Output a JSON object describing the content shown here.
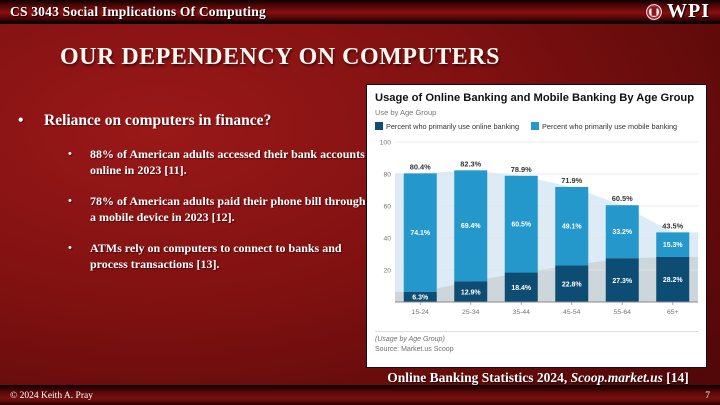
{
  "topbar": {
    "course": "CS 3043 Social Implications Of Computing",
    "logo_text": "WPI"
  },
  "slide": {
    "title": "OUR DEPENDENCY ON COMPUTERS",
    "bullet_main": "Reliance on computers in finance?",
    "sub_bullets": [
      "88% of American adults accessed their bank accounts online in 2023 [11].",
      "78% of American adults paid their phone bill through a mobile device in 2023 [12].",
      "ATMs rely on computers to connect to banks and process transactions [13]."
    ],
    "caption": {
      "prefix": "Online Banking Statistics 2024, ",
      "italic": "Scoop.market.us",
      "suffix": " [14]"
    }
  },
  "footer": {
    "copyright": "© 2024 Keith A. Pray",
    "page_number": "7"
  },
  "colors": {
    "wpi_crimson": "#a4283a",
    "slide_red": "#8a0f0f"
  },
  "chart_data": {
    "type": "bar",
    "stacked": true,
    "title": "Usage of Online Banking and Mobile Banking By Age Group",
    "subtitle": "Use by Age Group",
    "categories": [
      "15-24",
      "25-34",
      "35-44",
      "45-54",
      "55-64",
      "65+"
    ],
    "series": [
      {
        "name": "Percent who primarily use online banking",
        "color": "#0e4d73",
        "values": [
          6.3,
          12.9,
          18.4,
          22.8,
          27.3,
          28.2
        ]
      },
      {
        "name": "Percent who primarily use mobile banking",
        "color": "#2598cb",
        "values": [
          74.1,
          69.4,
          60.5,
          49.1,
          33.2,
          15.3
        ]
      }
    ],
    "totals": [
      80.4,
      82.3,
      78.9,
      71.9,
      60.5,
      43.5
    ],
    "ylim": [
      0,
      100
    ],
    "yticks": [
      20,
      40,
      60,
      80,
      100
    ],
    "grid": true,
    "legend_position": "top",
    "area_colors": {
      "total": "#dcebf5",
      "online": "#ccd6db"
    },
    "footnote": "(Usage by Age Group)",
    "source": "Source: Market.us Scoop"
  }
}
